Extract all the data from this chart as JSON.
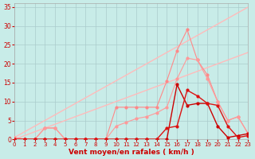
{
  "xlabel": "Vent moyen/en rafales ( km/h )",
  "bg_color": "#c8ece8",
  "grid_color": "#aacccc",
  "xlim": [
    0,
    23
  ],
  "ylim": [
    0,
    36
  ],
  "yticks": [
    0,
    5,
    10,
    15,
    20,
    25,
    30,
    35
  ],
  "xticks": [
    0,
    1,
    2,
    3,
    4,
    5,
    6,
    7,
    8,
    9,
    10,
    11,
    12,
    13,
    14,
    15,
    16,
    17,
    18,
    19,
    20,
    21,
    22,
    23
  ],
  "lines": [
    {
      "x": [
        0,
        23
      ],
      "y": [
        0.5,
        35
      ],
      "color": "#ffbbbb",
      "lw": 1.0,
      "marker": null
    },
    {
      "x": [
        0,
        23
      ],
      "y": [
        0,
        23
      ],
      "color": "#ffbbbb",
      "lw": 1.0,
      "marker": null
    },
    {
      "x": [
        0,
        1,
        2,
        3,
        4,
        5,
        6,
        7,
        8,
        9,
        10,
        11,
        12,
        13,
        14,
        15,
        16,
        17,
        18,
        19,
        20,
        21,
        22,
        23
      ],
      "y": [
        0.5,
        0,
        0,
        3,
        3,
        0,
        0,
        0,
        0,
        0,
        8.5,
        8.5,
        8.5,
        8.5,
        8.5,
        15.5,
        23.5,
        29,
        21,
        17,
        10,
        5,
        6,
        1.5
      ],
      "color": "#ff8888",
      "lw": 0.8,
      "marker": "o",
      "ms": 2.0
    },
    {
      "x": [
        0,
        1,
        2,
        3,
        4,
        5,
        6,
        7,
        8,
        9,
        10,
        11,
        12,
        13,
        14,
        15,
        16,
        17,
        18,
        19,
        20,
        21,
        22,
        23
      ],
      "y": [
        0.5,
        0,
        0,
        3,
        3,
        0,
        0,
        0,
        0,
        0,
        3.5,
        4.5,
        5.5,
        6,
        7,
        8.5,
        16,
        21.5,
        21,
        16,
        10,
        5,
        6,
        1.5
      ],
      "color": "#ff9999",
      "lw": 0.8,
      "marker": "o",
      "ms": 2.0
    },
    {
      "x": [
        0,
        1,
        2,
        3,
        4,
        5,
        6,
        7,
        8,
        9,
        10,
        11,
        12,
        13,
        14,
        15,
        16,
        17,
        18,
        19,
        20,
        21,
        22,
        23
      ],
      "y": [
        0,
        0,
        0,
        0,
        0,
        0,
        0,
        0,
        0,
        0,
        0,
        0,
        0,
        0,
        0,
        0,
        14.5,
        9,
        9.5,
        9.5,
        3.5,
        0.5,
        1,
        1.5
      ],
      "color": "#cc0000",
      "lw": 1.0,
      "marker": "o",
      "ms": 2.0
    },
    {
      "x": [
        0,
        1,
        2,
        3,
        4,
        5,
        6,
        7,
        8,
        9,
        10,
        11,
        12,
        13,
        14,
        15,
        16,
        17,
        18,
        19,
        20,
        21,
        22,
        23
      ],
      "y": [
        0,
        0,
        0,
        0,
        0,
        0,
        0,
        0,
        0,
        0,
        0,
        0,
        0,
        0,
        0,
        3,
        3.5,
        13,
        11.5,
        9.5,
        9,
        3.5,
        0.5,
        1
      ],
      "color": "#dd1111",
      "lw": 1.0,
      "marker": "o",
      "ms": 2.0
    }
  ]
}
